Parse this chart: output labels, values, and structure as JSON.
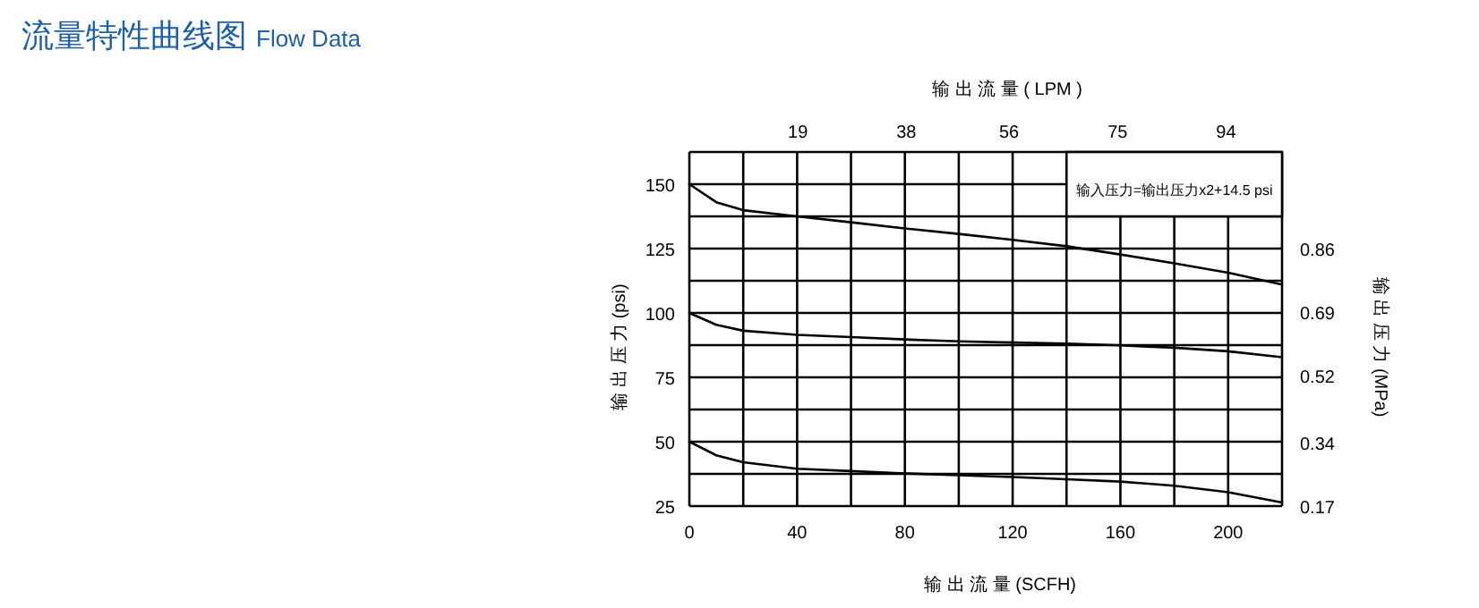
{
  "chart_data": {
    "type": "line",
    "title": "流量特性曲线图",
    "subtitle": "Flow Data",
    "xlabel": "输 出 流 量 (SCFH)",
    "x2label": "输 出 流 量 ( LPM )",
    "ylabel": "输 出 压 力 (psi)",
    "y2label": "输 出 压 力 (MPa)",
    "annotations": [
      "输入压力=输出压力x2+14.5 psi"
    ],
    "x": [
      0,
      10,
      20,
      40,
      60,
      80,
      100,
      120,
      140,
      160,
      180,
      200,
      220
    ],
    "series": [
      {
        "color": "#000000",
        "values": [
          150,
          143,
          139.9,
          137.5,
          135.2,
          132.8,
          130.7,
          128.4,
          125.9,
          122.7,
          119.3,
          115.6,
          111
        ]
      },
      {
        "color": "#000000",
        "values": [
          100,
          95.4,
          93.1,
          91.5,
          90.6,
          89.7,
          89,
          88.5,
          88.1,
          87.4,
          86.5,
          85.1,
          82.8
        ]
      },
      {
        "color": "#000000",
        "values": [
          50,
          44.7,
          42,
          39.5,
          38.6,
          37.7,
          37,
          36.3,
          35.4,
          34.5,
          32.9,
          30.4,
          26.4
        ]
      }
    ],
    "xlim": [
      0,
      220
    ],
    "xticks": [
      0,
      {
        "value": 20,
        "label": null
      },
      40,
      {
        "value": 60,
        "label": null
      },
      80,
      {
        "value": 100,
        "label": null
      },
      120,
      {
        "value": 140,
        "label": null
      },
      160,
      {
        "value": 180,
        "label": null
      },
      200
    ],
    "x2lim": [
      0,
      103.8
    ],
    "x2ticks": [
      19,
      38,
      56,
      75,
      94
    ],
    "ylim": [
      25,
      162.5
    ],
    "yticks": [
      25,
      {
        "value": 37.5,
        "label": null
      },
      50,
      {
        "value": 62.5,
        "label": null
      },
      75,
      {
        "value": 87.5,
        "label": null
      },
      100,
      {
        "value": 112.5,
        "label": null
      },
      125,
      {
        "value": 137.5,
        "label": null
      },
      150
    ],
    "y2lim": [
      0.17,
      1.12
    ],
    "y2ticks": [
      0.17,
      0.34,
      0.52,
      0.69,
      0.86
    ],
    "grid": true
  }
}
